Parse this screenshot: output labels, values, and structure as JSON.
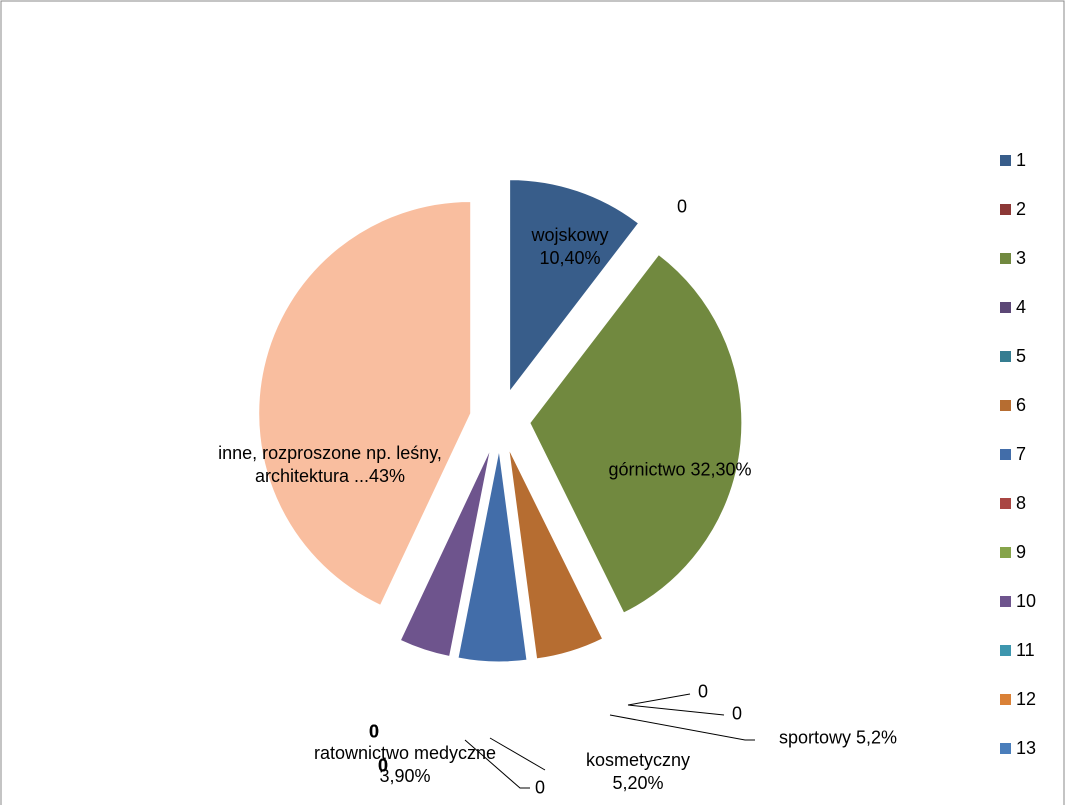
{
  "chart_data": {
    "type": "pie",
    "categories": [
      "1",
      "2",
      "3",
      "4",
      "5",
      "6",
      "7",
      "8",
      "9",
      "10",
      "11",
      "12",
      "13",
      null
    ],
    "values": [
      10.4,
      0,
      32.3,
      0,
      0,
      5.2,
      5.2,
      0,
      0,
      3.9,
      0,
      0,
      0,
      43
    ],
    "value_labels": [
      "wojskowy 10,40%",
      "0",
      "górnictwo 32,30%",
      "0",
      "0",
      "sportowy 5,2%",
      "kosmetyczny 5,20%",
      "0",
      "0",
      "ratownictwo medyczne 3,90%",
      "0",
      "0",
      "0",
      "inne, rozproszone np. leśny, architektura ...43%"
    ],
    "colors": [
      "#385D8A",
      "#8C3836",
      "#71893F",
      "#5C4776",
      "#357D91",
      "#B66D31",
      "#426DA9",
      "#A94643",
      "#86A44A",
      "#6E548D",
      "#3D96AE",
      "#DA8137",
      "#4A7EBB",
      "#F9BE9F"
    ],
    "legend": "right"
  }
}
